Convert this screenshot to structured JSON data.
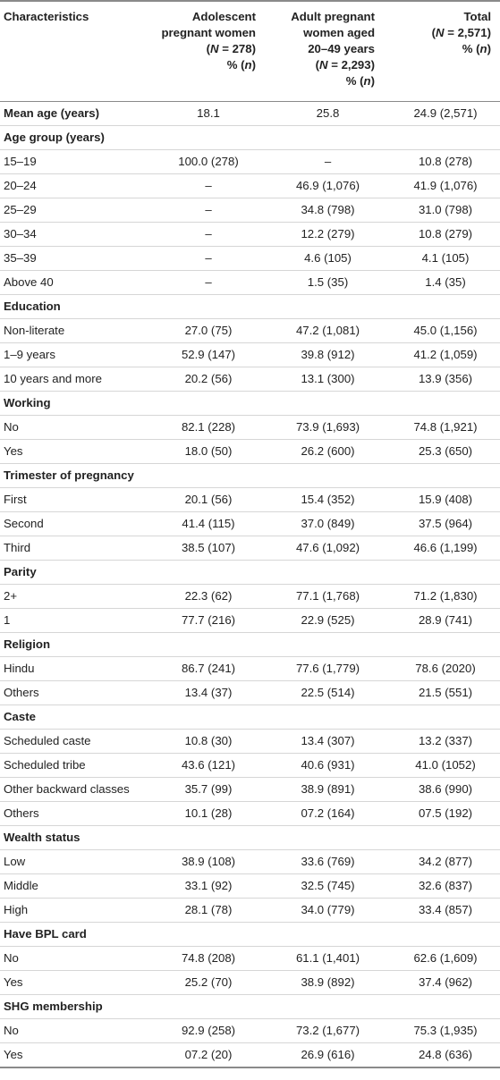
{
  "header": {
    "col0": "Characteristics",
    "col1_lines": [
      "Adolescent",
      "pregnant women",
      "(N = 278)",
      "% (n)"
    ],
    "col2_lines": [
      "Adult pregnant",
      "women aged",
      "20–49 years",
      "(N = 2,293)",
      "% (n)"
    ],
    "col3_lines": [
      "Total",
      "(N = 2,571)",
      "% (n)"
    ]
  },
  "rows": [
    {
      "type": "mean",
      "label": "Mean age (years)",
      "v": [
        "18.1",
        "25.8",
        "24.9 (2,571)"
      ]
    },
    {
      "type": "sec",
      "label": "Age group (years)"
    },
    {
      "type": "row",
      "label": "15–19",
      "v": [
        "100.0 (278)",
        "–",
        "10.8 (278)"
      ]
    },
    {
      "type": "row",
      "label": "20–24",
      "v": [
        "–",
        "46.9 (1,076)",
        "41.9 (1,076)"
      ]
    },
    {
      "type": "row",
      "label": "25–29",
      "v": [
        "–",
        "34.8 (798)",
        "31.0 (798)"
      ]
    },
    {
      "type": "row",
      "label": "30–34",
      "v": [
        "–",
        "12.2 (279)",
        "10.8 (279)"
      ]
    },
    {
      "type": "row",
      "label": "35–39",
      "v": [
        "–",
        "4.6 (105)",
        "4.1 (105)"
      ]
    },
    {
      "type": "row",
      "label": "Above 40",
      "v": [
        "–",
        "1.5 (35)",
        "1.4 (35)"
      ]
    },
    {
      "type": "sec",
      "label": "Education"
    },
    {
      "type": "row",
      "label": "Non-literate",
      "v": [
        "27.0 (75)",
        "47.2 (1,081)",
        "45.0 (1,156)"
      ]
    },
    {
      "type": "row",
      "label": "1–9 years",
      "v": [
        "52.9 (147)",
        "39.8 (912)",
        "41.2 (1,059)"
      ]
    },
    {
      "type": "row",
      "label": "10 years and more",
      "v": [
        "20.2 (56)",
        "13.1 (300)",
        "13.9 (356)"
      ]
    },
    {
      "type": "sec",
      "label": "Working"
    },
    {
      "type": "row",
      "label": "No",
      "v": [
        "82.1 (228)",
        "73.9 (1,693)",
        "74.8 (1,921)"
      ]
    },
    {
      "type": "row",
      "label": "Yes",
      "v": [
        "18.0 (50)",
        "26.2 (600)",
        "25.3 (650)"
      ]
    },
    {
      "type": "sec",
      "label": "Trimester of pregnancy"
    },
    {
      "type": "row",
      "label": "First",
      "v": [
        "20.1 (56)",
        "15.4 (352)",
        "15.9 (408)"
      ]
    },
    {
      "type": "row",
      "label": "Second",
      "v": [
        "41.4 (115)",
        "37.0 (849)",
        "37.5 (964)"
      ]
    },
    {
      "type": "row",
      "label": "Third",
      "v": [
        "38.5 (107)",
        "47.6 (1,092)",
        "46.6 (1,199)"
      ]
    },
    {
      "type": "sec",
      "label": "Parity"
    },
    {
      "type": "row",
      "label": "2+",
      "v": [
        "22.3 (62)",
        "77.1 (1,768)",
        "71.2 (1,830)"
      ]
    },
    {
      "type": "row",
      "label": "1",
      "v": [
        "77.7 (216)",
        "22.9 (525)",
        "28.9 (741)"
      ]
    },
    {
      "type": "sec",
      "label": "Religion"
    },
    {
      "type": "row",
      "label": "Hindu",
      "v": [
        "86.7 (241)",
        "77.6 (1,779)",
        "78.6 (2020)"
      ]
    },
    {
      "type": "row",
      "label": "Others",
      "v": [
        "13.4 (37)",
        "22.5 (514)",
        "21.5 (551)"
      ]
    },
    {
      "type": "sec",
      "label": "Caste"
    },
    {
      "type": "row",
      "label": "Scheduled caste",
      "v": [
        "10.8 (30)",
        "13.4 (307)",
        "13.2 (337)"
      ]
    },
    {
      "type": "row",
      "label": "Scheduled tribe",
      "v": [
        "43.6 (121)",
        "40.6 (931)",
        "41.0 (1052)"
      ]
    },
    {
      "type": "row",
      "label": "Other backward classes",
      "v": [
        "35.7 (99)",
        "38.9 (891)",
        "38.6 (990)"
      ]
    },
    {
      "type": "row",
      "label": "Others",
      "v": [
        "10.1 (28)",
        "07.2 (164)",
        "07.5 (192)"
      ]
    },
    {
      "type": "sec",
      "label": "Wealth status"
    },
    {
      "type": "row",
      "label": "Low",
      "v": [
        "38.9 (108)",
        "33.6 (769)",
        "34.2 (877)"
      ]
    },
    {
      "type": "row",
      "label": "Middle",
      "v": [
        "33.1 (92)",
        "32.5 (745)",
        "32.6 (837)"
      ]
    },
    {
      "type": "row",
      "label": "High",
      "v": [
        "28.1 (78)",
        "34.0 (779)",
        "33.4 (857)"
      ]
    },
    {
      "type": "sec",
      "label": "Have BPL card"
    },
    {
      "type": "row",
      "label": "No",
      "v": [
        "74.8 (208)",
        "61.1 (1,401)",
        "62.6 (1,609)"
      ]
    },
    {
      "type": "row",
      "label": "Yes",
      "v": [
        "25.2 (70)",
        "38.9 (892)",
        "37.4 (962)"
      ]
    },
    {
      "type": "sec",
      "label": "SHG membership"
    },
    {
      "type": "row",
      "label": "No",
      "v": [
        "92.9 (258)",
        "73.2 (1,677)",
        "75.3 (1,935)"
      ]
    },
    {
      "type": "row",
      "label": "Yes",
      "v": [
        "07.2 (20)",
        "26.9 (616)",
        "24.8 (636)"
      ]
    }
  ]
}
